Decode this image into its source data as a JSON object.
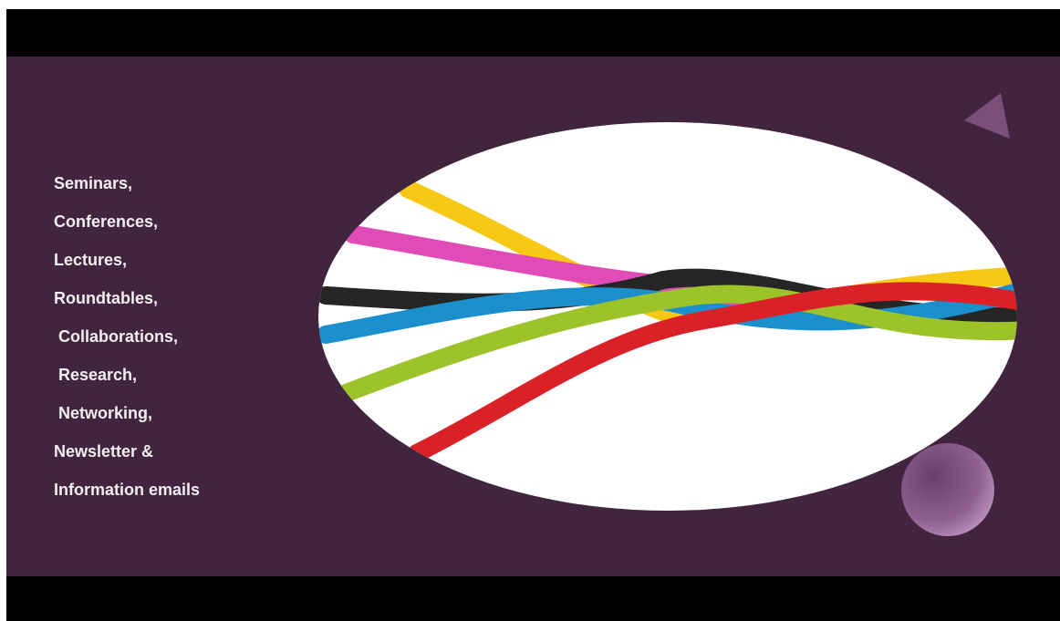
{
  "list": [
    "Seminars,",
    "Conferences,",
    "Lectures,",
    "Roundtables,",
    " Collaborations,",
    " Research,",
    " Networking,",
    "Newsletter &",
    "Information emails"
  ]
}
